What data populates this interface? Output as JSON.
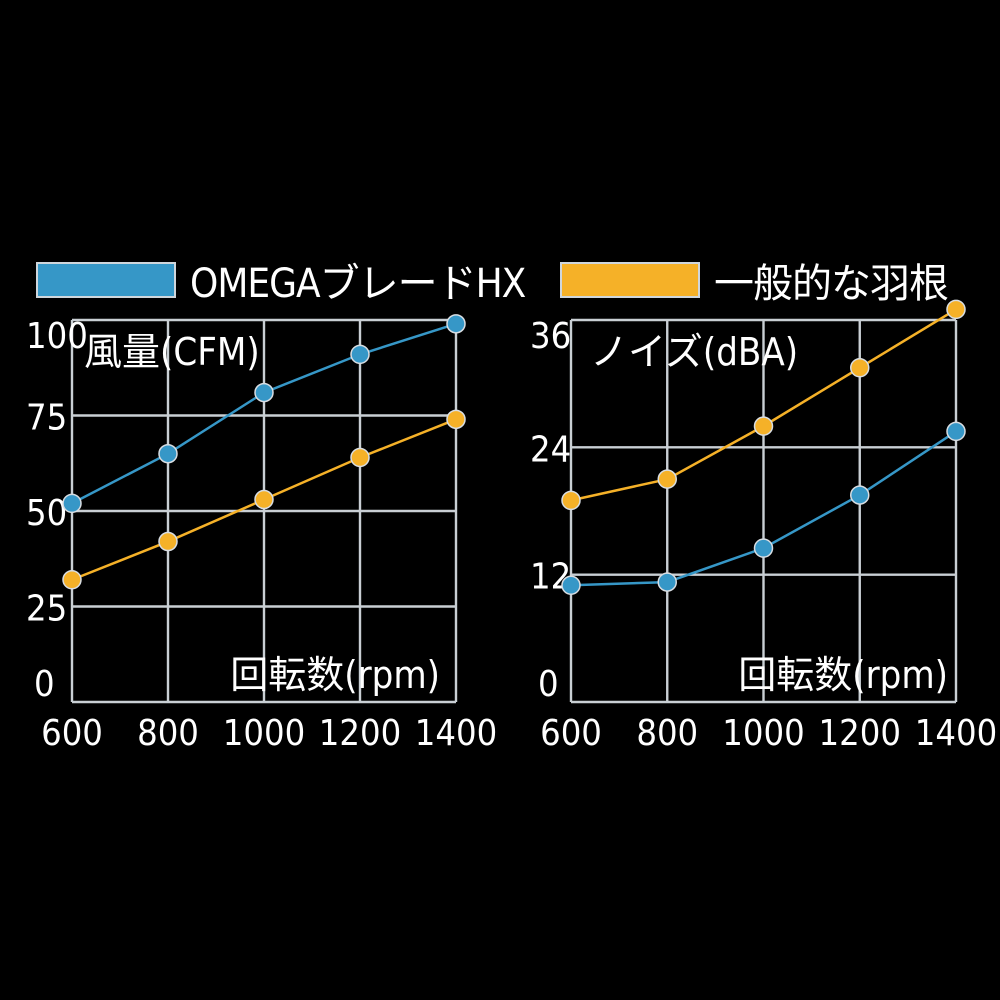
{
  "colors": {
    "omega": "#3697c7",
    "standard": "#f5b128",
    "grid": "#c9cfd4",
    "background": "#000000"
  },
  "legend": [
    {
      "label": "OMEGAブレードHX",
      "color": "#3697c7"
    },
    {
      "label": "一般的な羽根",
      "color": "#f5b128"
    }
  ],
  "chart_data": [
    {
      "type": "line",
      "title": "風量(CFM)",
      "xlabel": "回転数(rpm)",
      "ylabel": "",
      "x": [
        600,
        800,
        1000,
        1200,
        1400
      ],
      "xlim": [
        600,
        1400
      ],
      "ylim": [
        0,
        100
      ],
      "yticks": [
        "100",
        "75",
        "50",
        "25",
        "0"
      ],
      "xticks": [
        "600",
        "800",
        "1000",
        "1200",
        "1400"
      ],
      "series": [
        {
          "name": "OMEGAブレードHX",
          "values": [
            52,
            65,
            81,
            91,
            99
          ]
        },
        {
          "name": "一般的な羽根",
          "values": [
            32,
            42,
            53,
            64,
            74
          ]
        }
      ]
    },
    {
      "type": "line",
      "title": "ノイズ(dBA)",
      "xlabel": "回転数(rpm)",
      "ylabel": "",
      "x": [
        600,
        800,
        1000,
        1200,
        1400
      ],
      "xlim": [
        600,
        1400
      ],
      "ylim": [
        0,
        36
      ],
      "yticks": [
        "36",
        "24",
        "12",
        "0"
      ],
      "xticks": [
        "600",
        "800",
        "1000",
        "1200",
        "1400"
      ],
      "series": [
        {
          "name": "OMEGAブレードHX",
          "values": [
            11,
            11.3,
            14.5,
            19.5,
            25.5
          ]
        },
        {
          "name": "一般的な羽根",
          "values": [
            19,
            21,
            26,
            31.5,
            37
          ]
        }
      ]
    }
  ]
}
